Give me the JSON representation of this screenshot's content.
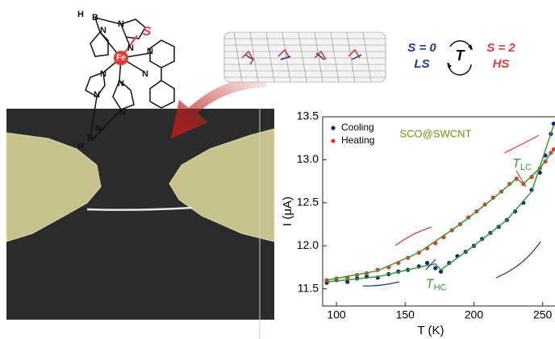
{
  "molecule": {
    "atoms": [
      "H",
      "B",
      "N",
      "N",
      "N",
      "N",
      "Fe",
      "S",
      "N",
      "N",
      "N",
      "N",
      "H",
      "B",
      "N",
      "N"
    ]
  },
  "spin_states": {
    "low": {
      "spin": "S = 0",
      "label": "LS"
    },
    "high": {
      "spin": "S = 2",
      "label": "HS"
    },
    "center": "T"
  },
  "chart_data": {
    "type": "scatter",
    "title": "SCO@SWCNT",
    "xlabel": "T (K)",
    "ylabel": "I (μA)",
    "xlim": [
      90,
      259
    ],
    "ylim": [
      11.3,
      13.5
    ],
    "xticks": [
      100,
      150,
      200,
      250
    ],
    "yticks": [
      11.5,
      {
        "value": 12,
        "label": "12.0"
      },
      12.5,
      {
        "value": 13,
        "label": "13.0"
      },
      13.5
    ],
    "legend": "upper left",
    "series": [
      {
        "name": "Cooling",
        "color": "#1a237e",
        "x": [
          93,
          100,
          108,
          115,
          122,
          130,
          138,
          145,
          152,
          160,
          166,
          172,
          176,
          182,
          188,
          194,
          200,
          206,
          212,
          218,
          224,
          230,
          236,
          242,
          248,
          252,
          256,
          258
        ],
        "values": [
          11.57,
          11.6,
          11.58,
          11.62,
          11.64,
          11.63,
          11.67,
          11.7,
          11.72,
          11.76,
          11.8,
          11.74,
          11.7,
          11.8,
          11.88,
          11.93,
          12.0,
          12.08,
          12.15,
          12.22,
          12.3,
          12.4,
          12.5,
          12.65,
          12.85,
          13.05,
          13.3,
          13.42
        ]
      },
      {
        "name": "Heating",
        "color": "#ff2a2a",
        "x": [
          93,
          100,
          108,
          115,
          122,
          130,
          138,
          145,
          152,
          160,
          166,
          172,
          178,
          184,
          190,
          196,
          202,
          208,
          214,
          220,
          226,
          231,
          236,
          242,
          248,
          252,
          256,
          258
        ],
        "values": [
          11.6,
          11.62,
          11.63,
          11.66,
          11.68,
          11.72,
          11.75,
          11.8,
          11.86,
          11.92,
          11.97,
          12.03,
          12.1,
          12.18,
          12.25,
          12.33,
          12.4,
          12.48,
          12.56,
          12.63,
          12.72,
          12.78,
          12.72,
          12.8,
          12.9,
          12.98,
          13.08,
          13.12
        ]
      }
    ],
    "fits": [
      {
        "color": "#2e9e2e",
        "x": [
          93,
          130,
          160,
          172,
          176,
          200,
          224,
          242,
          258
        ],
        "values": [
          11.58,
          11.64,
          11.75,
          11.79,
          11.72,
          12.0,
          12.3,
          12.63,
          13.4
        ]
      },
      {
        "color": "#2e9e2e",
        "x": [
          93,
          130,
          160,
          190,
          214,
          231,
          236,
          248,
          258
        ],
        "values": [
          11.6,
          11.71,
          11.92,
          12.25,
          12.55,
          12.78,
          12.72,
          12.9,
          13.12
        ]
      }
    ],
    "annotations": [
      {
        "text": "T",
        "sub": "LC",
        "x": 228,
        "y": 12.95
      },
      {
        "text": "T",
        "sub": "HC",
        "x": 165,
        "y": 11.55
      }
    ]
  }
}
